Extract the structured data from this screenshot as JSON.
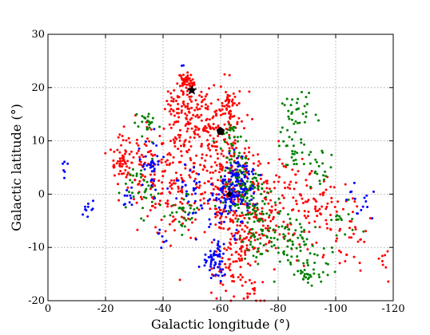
{
  "chart_data": {
    "type": "scatter",
    "title": "",
    "xlabel": "Galactic longitude (°)",
    "ylabel": "Galactic latitude (°)",
    "xlim": [
      0,
      -120
    ],
    "ylim": [
      -20,
      30
    ],
    "x_ticks": [
      0,
      -20,
      -40,
      -60,
      -80,
      -100,
      -120
    ],
    "x_tick_labels": [
      "0",
      "-20",
      "-40",
      "-60",
      "-80",
      "-100",
      "-120"
    ],
    "y_ticks": [
      -20,
      -10,
      0,
      10,
      20,
      30
    ],
    "y_tick_labels": [
      "-20",
      "-10",
      "0",
      "10",
      "20",
      "30"
    ],
    "grid": true,
    "legend": "none",
    "series": [
      {
        "color": "#ff0000",
        "marker": "dot",
        "clusters": [
          {
            "center": [
              -48,
              21
            ],
            "spread": [
              1.4,
              0.9
            ],
            "count": 50
          },
          {
            "center": [
              -44,
              17
            ],
            "spread": [
              1.5,
              1.5
            ],
            "count": 25
          },
          {
            "center": [
              -53,
              15
            ],
            "spread": [
              4,
              2.5
            ],
            "count": 70
          },
          {
            "center": [
              -63,
              16
            ],
            "spread": [
              2,
              2.8
            ],
            "count": 60
          },
          {
            "center": [
              -57,
              9
            ],
            "spread": [
              8,
              4
            ],
            "count": 150
          },
          {
            "center": [
              -25,
              6
            ],
            "spread": [
              2,
              1.5
            ],
            "count": 35
          },
          {
            "center": [
              -32,
              5
            ],
            "spread": [
              5,
              4
            ],
            "count": 90
          },
          {
            "center": [
              -43,
              0
            ],
            "spread": [
              5,
              4
            ],
            "count": 90
          },
          {
            "center": [
              -62,
              0
            ],
            "spread": [
              7,
              5
            ],
            "count": 140
          },
          {
            "center": [
              -75,
              -3
            ],
            "spread": [
              8,
              5
            ],
            "count": 170
          },
          {
            "center": [
              -92,
              -3
            ],
            "spread": [
              6,
              4
            ],
            "count": 80
          },
          {
            "center": [
              -68,
              -10
            ],
            "spread": [
              3,
              3
            ],
            "count": 50
          },
          {
            "center": [
              -62,
              -15
            ],
            "spread": [
              3,
              3
            ],
            "count": 40
          },
          {
            "center": [
              -45,
              12
            ],
            "spread": [
              3,
              3
            ],
            "count": 35
          },
          {
            "center": [
              -72,
              -18
            ],
            "spread": [
              1.5,
              1.5
            ],
            "count": 15
          },
          {
            "center": [
              -105,
              -8
            ],
            "spread": [
              4,
              3
            ],
            "count": 30
          },
          {
            "center": [
              -117,
              -12
            ],
            "spread": [
              1,
              1.5
            ],
            "count": 8
          }
        ]
      },
      {
        "color": "#008000",
        "marker": "dot",
        "clusters": [
          {
            "center": [
              -34,
              13
            ],
            "spread": [
              2,
              1.5
            ],
            "count": 25
          },
          {
            "center": [
              -33,
              1
            ],
            "spread": [
              3,
              2.5
            ],
            "count": 35
          },
          {
            "center": [
              -63,
              11
            ],
            "spread": [
              2,
              1.5
            ],
            "count": 20
          },
          {
            "center": [
              -66,
              4
            ],
            "spread": [
              2.5,
              2.5
            ],
            "count": 60
          },
          {
            "center": [
              -70,
              -1
            ],
            "spread": [
              4,
              3
            ],
            "count": 90
          },
          {
            "center": [
              -87,
              16
            ],
            "spread": [
              2.5,
              1.2
            ],
            "count": 25
          },
          {
            "center": [
              -85,
              10
            ],
            "spread": [
              3,
              3
            ],
            "count": 35
          },
          {
            "center": [
              -95,
              5
            ],
            "spread": [
              2,
              2
            ],
            "count": 20
          },
          {
            "center": [
              -47,
              -3
            ],
            "spread": [
              3,
              2
            ],
            "count": 30
          },
          {
            "center": [
              -87,
              -10
            ],
            "spread": [
              5,
              3
            ],
            "count": 80
          },
          {
            "center": [
              -73,
              -8
            ],
            "spread": [
              3,
              3
            ],
            "count": 40
          },
          {
            "center": [
              -90,
              -15
            ],
            "spread": [
              3,
              1
            ],
            "count": 25
          },
          {
            "center": [
              -103,
              -4
            ],
            "spread": [
              2,
              2
            ],
            "count": 15
          }
        ]
      },
      {
        "color": "#0000ff",
        "marker": "dot",
        "clusters": [
          {
            "center": [
              -66,
              2
            ],
            "spread": [
              3,
              3
            ],
            "count": 110
          },
          {
            "center": [
              -60,
              -2
            ],
            "spread": [
              3,
              3
            ],
            "count": 50
          },
          {
            "center": [
              -58,
              -12
            ],
            "spread": [
              2,
              2
            ],
            "count": 60
          },
          {
            "center": [
              -36,
              6
            ],
            "spread": [
              1.8,
              2.5
            ],
            "count": 35
          },
          {
            "center": [
              -28,
              -1
            ],
            "spread": [
              1,
              1.2
            ],
            "count": 10
          },
          {
            "center": [
              -14,
              -3
            ],
            "spread": [
              1.2,
              0.8
            ],
            "count": 10
          },
          {
            "center": [
              -6,
              5
            ],
            "spread": [
              0.6,
              1.5
            ],
            "count": 6
          },
          {
            "center": [
              -50,
              1
            ],
            "spread": [
              4,
              3
            ],
            "count": 30
          },
          {
            "center": [
              -109,
              -1
            ],
            "spread": [
              2,
              2
            ],
            "count": 15
          },
          {
            "center": [
              -47,
              24
            ],
            "spread": [
              0.3,
              0.3
            ],
            "count": 2
          },
          {
            "center": [
              -40,
              -8
            ],
            "spread": [
              1.5,
              1.5
            ],
            "count": 6
          }
        ]
      }
    ],
    "markers": [
      {
        "shape": "star",
        "x": -50,
        "y": 19.5,
        "color": "#000000"
      },
      {
        "shape": "pentagon",
        "x": -60,
        "y": 11.8,
        "color": "#000000"
      },
      {
        "shape": "diamond",
        "x": -63,
        "y": 0,
        "color": "#000000"
      }
    ]
  }
}
